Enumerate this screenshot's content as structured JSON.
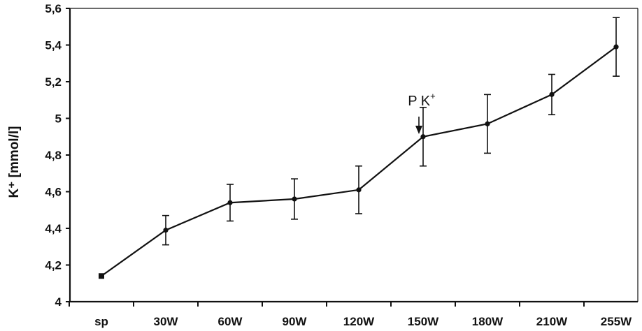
{
  "chart_data": {
    "type": "line",
    "categories": [
      "sp",
      "30W",
      "60W",
      "90W",
      "120W",
      "150W",
      "180W",
      "210W",
      "255W"
    ],
    "series": [
      {
        "values": [
          4.14,
          4.39,
          4.54,
          4.56,
          4.61,
          4.9,
          4.97,
          5.13,
          5.39
        ],
        "error": [
          0.0,
          0.08,
          0.1,
          0.11,
          0.13,
          0.16,
          0.16,
          0.11,
          0.16
        ]
      }
    ],
    "ylabel": "K⁺ [mmol/l]",
    "ylim": [
      4,
      5.6
    ],
    "yticks": [
      "4",
      "4,2",
      "4,4",
      "4,6",
      "4,8",
      "5",
      "5,2",
      "5,4",
      "5,6"
    ],
    "yticks_values": [
      4,
      4.2,
      4.4,
      4.6,
      4.8,
      5.0,
      5.2,
      5.4,
      5.6
    ],
    "grid": false,
    "annotation": {
      "label_main": "P K",
      "label_sup": "+",
      "category_position": 5.5
    },
    "colors": {
      "line": "#111111",
      "axis": "#111111"
    }
  }
}
